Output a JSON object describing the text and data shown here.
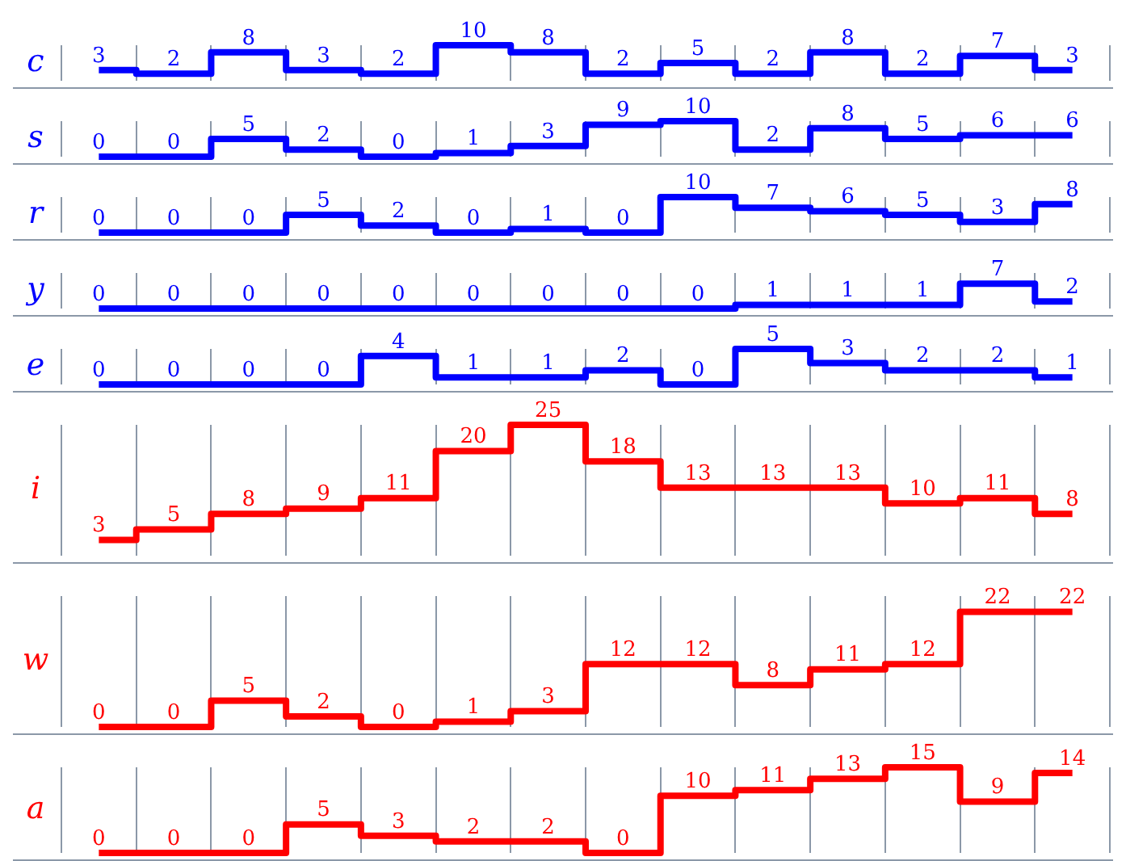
{
  "chart_data": [
    {
      "type": "step",
      "ylabel": "c",
      "categories": [
        null,
        null,
        null,
        null,
        null,
        null,
        null,
        null,
        null,
        null,
        null,
        null,
        null,
        null
      ],
      "values": [
        3,
        2,
        8,
        3,
        2,
        10,
        8,
        2,
        5,
        2,
        8,
        2,
        7,
        3
      ],
      "color": "#0000ff",
      "data_labels": true,
      "grid": "x",
      "tick_labels": false
    },
    {
      "type": "step",
      "ylabel": "s",
      "categories": [
        null,
        null,
        null,
        null,
        null,
        null,
        null,
        null,
        null,
        null,
        null,
        null,
        null,
        null
      ],
      "values": [
        0,
        0,
        5,
        2,
        0,
        1,
        3,
        9,
        10,
        2,
        8,
        5,
        6,
        6
      ],
      "color": "#0000ff",
      "data_labels": true,
      "grid": "x",
      "tick_labels": false
    },
    {
      "type": "step",
      "ylabel": "r",
      "categories": [
        null,
        null,
        null,
        null,
        null,
        null,
        null,
        null,
        null,
        null,
        null,
        null,
        null,
        null
      ],
      "values": [
        0,
        0,
        0,
        5,
        2,
        0,
        1,
        0,
        10,
        7,
        6,
        5,
        3,
        8
      ],
      "color": "#0000ff",
      "data_labels": true,
      "grid": "x",
      "tick_labels": false
    },
    {
      "type": "step",
      "ylabel": "y",
      "categories": [
        null,
        null,
        null,
        null,
        null,
        null,
        null,
        null,
        null,
        null,
        null,
        null,
        null,
        null
      ],
      "values": [
        0,
        0,
        0,
        0,
        0,
        0,
        0,
        0,
        0,
        1,
        1,
        1,
        7,
        2
      ],
      "color": "#0000ff",
      "data_labels": true,
      "grid": "x",
      "tick_labels": false
    },
    {
      "type": "step",
      "ylabel": "e",
      "categories": [
        null,
        null,
        null,
        null,
        null,
        null,
        null,
        null,
        null,
        null,
        null,
        null,
        null,
        null
      ],
      "values": [
        0,
        0,
        0,
        0,
        4,
        1,
        1,
        2,
        0,
        5,
        3,
        2,
        2,
        1
      ],
      "color": "#0000ff",
      "data_labels": true,
      "grid": "x",
      "tick_labels": false
    },
    {
      "type": "step",
      "ylabel": "i",
      "categories": [
        null,
        null,
        null,
        null,
        null,
        null,
        null,
        null,
        null,
        null,
        null,
        null,
        null,
        null
      ],
      "values": [
        3,
        5,
        8,
        9,
        11,
        20,
        25,
        18,
        13,
        13,
        13,
        10,
        11,
        8
      ],
      "color": "#ff0000",
      "data_labels": true,
      "grid": "x",
      "tick_labels": false
    },
    {
      "type": "step",
      "ylabel": "w",
      "categories": [
        null,
        null,
        null,
        null,
        null,
        null,
        null,
        null,
        null,
        null,
        null,
        null,
        null,
        null
      ],
      "values": [
        0,
        0,
        5,
        2,
        0,
        1,
        3,
        12,
        12,
        8,
        11,
        12,
        22,
        22
      ],
      "color": "#ff0000",
      "data_labels": true,
      "grid": "x",
      "tick_labels": false
    },
    {
      "type": "step",
      "ylabel": "a",
      "categories": [
        null,
        null,
        null,
        null,
        null,
        null,
        null,
        null,
        null,
        null,
        null,
        null,
        null,
        null
      ],
      "values": [
        0,
        0,
        0,
        5,
        3,
        2,
        2,
        0,
        10,
        11,
        13,
        15,
        9,
        14
      ],
      "color": "#ff0000",
      "data_labels": true,
      "grid": "x",
      "tick_labels": false
    }
  ]
}
